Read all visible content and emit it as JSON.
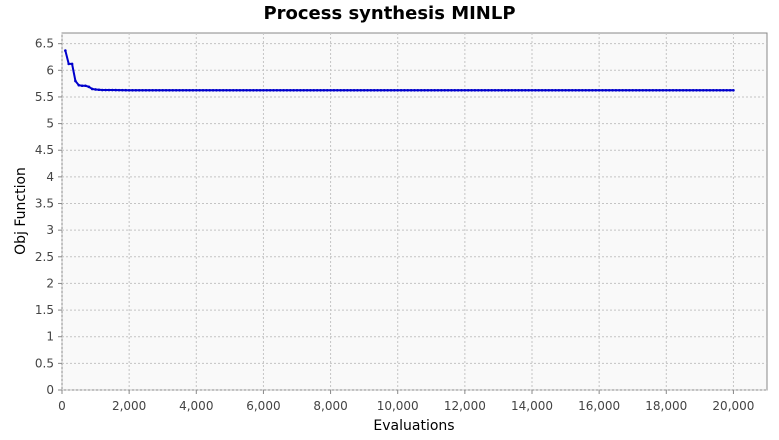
{
  "chart_data": {
    "type": "line",
    "title": "Process synthesis MINLP",
    "xlabel": "Evaluations",
    "ylabel": "Obj Function",
    "xlim": [
      0,
      21000
    ],
    "ylim": [
      0,
      6.7
    ],
    "x_ticks": [
      0,
      2000,
      4000,
      6000,
      8000,
      10000,
      12000,
      14000,
      16000,
      18000,
      20000
    ],
    "x_tick_labels": [
      "0",
      "2,000",
      "4,000",
      "6,000",
      "8,000",
      "10,000",
      "12,000",
      "14,000",
      "16,000",
      "18,000",
      "20,000"
    ],
    "y_ticks": [
      0,
      0.5,
      1,
      1.5,
      2,
      2.5,
      3,
      3.5,
      4,
      4.5,
      5,
      5.5,
      6,
      6.5
    ],
    "y_tick_labels": [
      "0",
      "0.5",
      "1",
      "1.5",
      "2",
      "2.5",
      "3",
      "3.5",
      "4",
      "4.5",
      "5",
      "5.5",
      "6",
      "6.5"
    ],
    "grid": true,
    "legend": false,
    "series": [
      {
        "color": "#0000cc",
        "marker_every": 100,
        "x": [
          100,
          200,
          300,
          400,
          500,
          600,
          700,
          800,
          900,
          1000,
          1200,
          1500,
          2000,
          20000
        ],
        "y": [
          6.37,
          6.12,
          6.12,
          5.8,
          5.72,
          5.71,
          5.71,
          5.69,
          5.65,
          5.64,
          5.63,
          5.63,
          5.625,
          5.625
        ]
      }
    ]
  }
}
